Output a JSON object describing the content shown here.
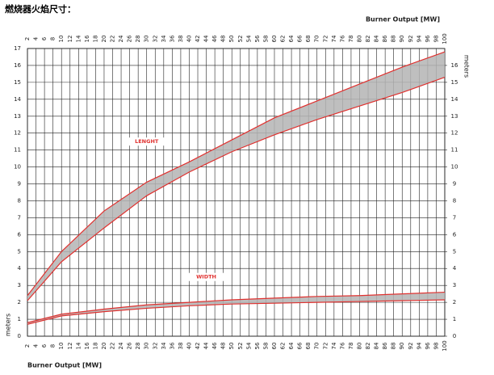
{
  "chart_data": {
    "type": "band",
    "title": "燃烧器火焰尺寸：",
    "x_label": "Burner Output [MW]",
    "y_label": "meters",
    "x": [
      2,
      10,
      20,
      30,
      40,
      50,
      60,
      70,
      80,
      90,
      100
    ],
    "series": [
      {
        "name": "LENGHT",
        "color": "#e0312f",
        "fill": "#b4b4b4",
        "upper": [
          2.4,
          5.0,
          7.4,
          9.1,
          10.3,
          11.6,
          12.9,
          13.9,
          14.9,
          15.9,
          16.8
        ],
        "lower": [
          2.1,
          4.4,
          6.4,
          8.3,
          9.7,
          10.9,
          11.9,
          12.8,
          13.6,
          14.4,
          15.3
        ]
      },
      {
        "name": "WIDTH",
        "color": "#e0312f",
        "fill": "#b4b4b4",
        "upper": [
          0.8,
          1.3,
          1.6,
          1.85,
          2.0,
          2.15,
          2.25,
          2.35,
          2.4,
          2.5,
          2.6
        ],
        "lower": [
          0.7,
          1.2,
          1.45,
          1.65,
          1.8,
          1.9,
          1.95,
          2.0,
          2.05,
          2.1,
          2.15
        ]
      }
    ],
    "xlim": [
      2,
      100
    ],
    "xticks": [
      2,
      4,
      6,
      8,
      10,
      12,
      14,
      16,
      18,
      20,
      22,
      24,
      26,
      28,
      30,
      32,
      34,
      36,
      38,
      40,
      42,
      44,
      46,
      48,
      50,
      52,
      54,
      56,
      58,
      60,
      62,
      64,
      66,
      68,
      70,
      72,
      74,
      76,
      78,
      80,
      82,
      84,
      86,
      88,
      90,
      92,
      94,
      96,
      98,
      100
    ],
    "ylim": [
      0,
      17
    ],
    "yticks": [
      0,
      1,
      2,
      3,
      4,
      5,
      6,
      7,
      8,
      9,
      10,
      11,
      12,
      13,
      14,
      15,
      16,
      17
    ],
    "y2lim": [
      0,
      17
    ],
    "y2ticks": [
      0,
      1,
      2,
      3,
      4,
      5,
      6,
      7,
      8,
      9,
      10,
      11,
      12,
      13,
      14,
      15,
      16
    ],
    "grid": true
  }
}
